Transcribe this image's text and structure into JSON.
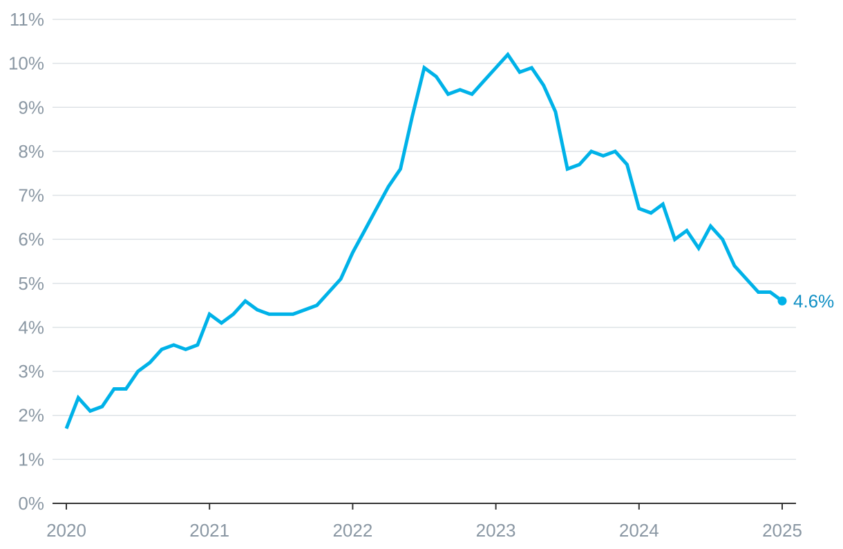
{
  "chart_data": {
    "type": "line",
    "title": "",
    "xlabel": "",
    "ylabel": "",
    "xlim": [
      2020,
      2025
    ],
    "ylim": [
      0,
      11
    ],
    "grid": true,
    "x_ticks": [
      {
        "value": 2020,
        "label": "2020"
      },
      {
        "value": 2021,
        "label": "2021"
      },
      {
        "value": 2022,
        "label": "2022"
      },
      {
        "value": 2023,
        "label": "2023"
      },
      {
        "value": 2024,
        "label": "2024"
      },
      {
        "value": 2025,
        "label": "2025"
      }
    ],
    "y_ticks": [
      {
        "value": 0,
        "label": "0%"
      },
      {
        "value": 1,
        "label": "1%"
      },
      {
        "value": 2,
        "label": "2%"
      },
      {
        "value": 3,
        "label": "3%"
      },
      {
        "value": 4,
        "label": "4%"
      },
      {
        "value": 5,
        "label": "5%"
      },
      {
        "value": 6,
        "label": "6%"
      },
      {
        "value": 7,
        "label": "7%"
      },
      {
        "value": 8,
        "label": "8%"
      },
      {
        "value": 9,
        "label": "9%"
      },
      {
        "value": 10,
        "label": "10%"
      },
      {
        "value": 11,
        "label": "11%"
      }
    ],
    "series": [
      {
        "color": "#00b2e8",
        "values": [
          1.7,
          2.4,
          2.1,
          2.2,
          2.6,
          2.6,
          3.0,
          3.2,
          3.5,
          3.6,
          3.5,
          3.6,
          4.3,
          4.1,
          4.3,
          4.6,
          4.4,
          4.3,
          4.3,
          4.3,
          4.4,
          4.5,
          4.8,
          5.1,
          5.7,
          6.2,
          6.7,
          7.2,
          7.6,
          8.8,
          9.9,
          9.7,
          9.3,
          9.4,
          9.3,
          9.6,
          9.9,
          10.2,
          9.8,
          9.9,
          9.5,
          8.9,
          7.6,
          7.7,
          8.0,
          7.9,
          8.0,
          7.7,
          6.7,
          6.6,
          6.8,
          6.0,
          6.2,
          5.8,
          6.3,
          6.0,
          5.4,
          5.1,
          4.8,
          4.8,
          4.6
        ]
      }
    ],
    "end_label": "4.6%",
    "end_label_color": "#0f8fc4",
    "grid_color": "#dde2e6",
    "axis_color": "#333333"
  }
}
